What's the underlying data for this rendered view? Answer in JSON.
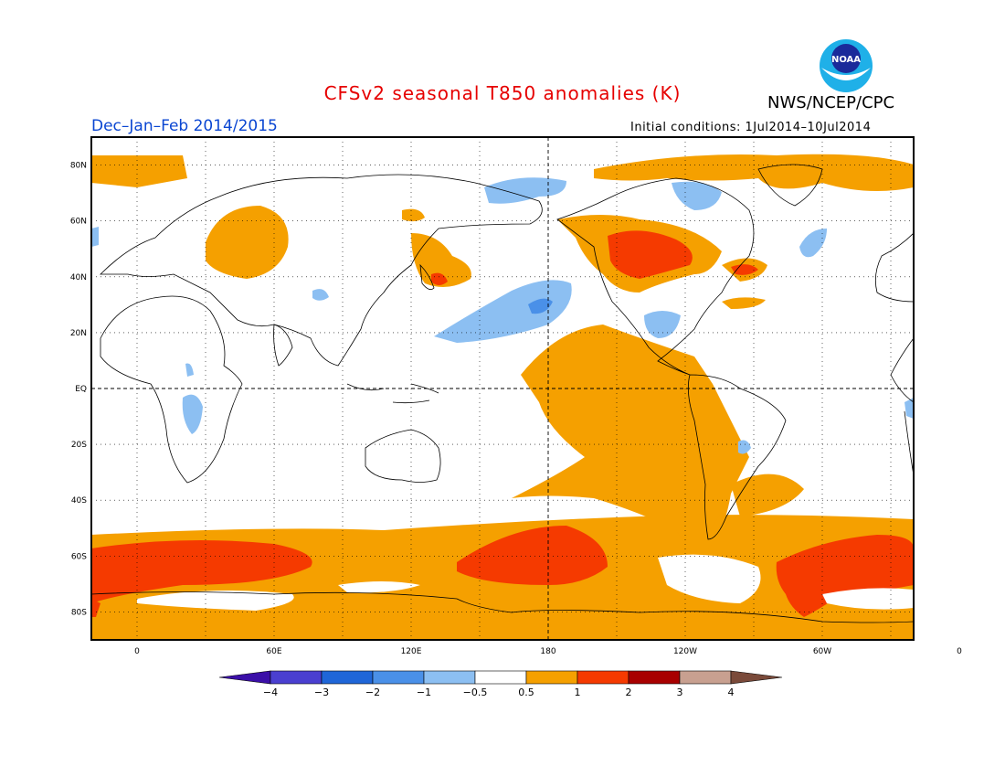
{
  "title": "CFSv2 seasonal T850 anomalies (K)",
  "organization": "NWS/NCEP/CPC",
  "logo_text": "NOAA",
  "period": "Dec–Jan–Feb 2014/2015",
  "initial_conditions": "Initial conditions: 1Jul2014–10Jul2014",
  "lat_labels": [
    "80N",
    "60N",
    "40N",
    "20N",
    "EQ",
    "20S",
    "40S",
    "60S",
    "80S"
  ],
  "lon_labels": [
    "0",
    "60E",
    "120E",
    "180",
    "120W",
    "60W",
    "0"
  ],
  "colorbar": {
    "labels": [
      "−4",
      "−3",
      "−2",
      "−1",
      "−0.5",
      "0.5",
      "1",
      "2",
      "3",
      "4"
    ],
    "colors": [
      "#3b0fa8",
      "#4a3fd0",
      "#1f66d8",
      "#4a90e8",
      "#8cbff2",
      "#ffffff",
      "#f5a000",
      "#f53a00",
      "#a80000",
      "#c8a090",
      "#7a4a3a"
    ]
  }
}
